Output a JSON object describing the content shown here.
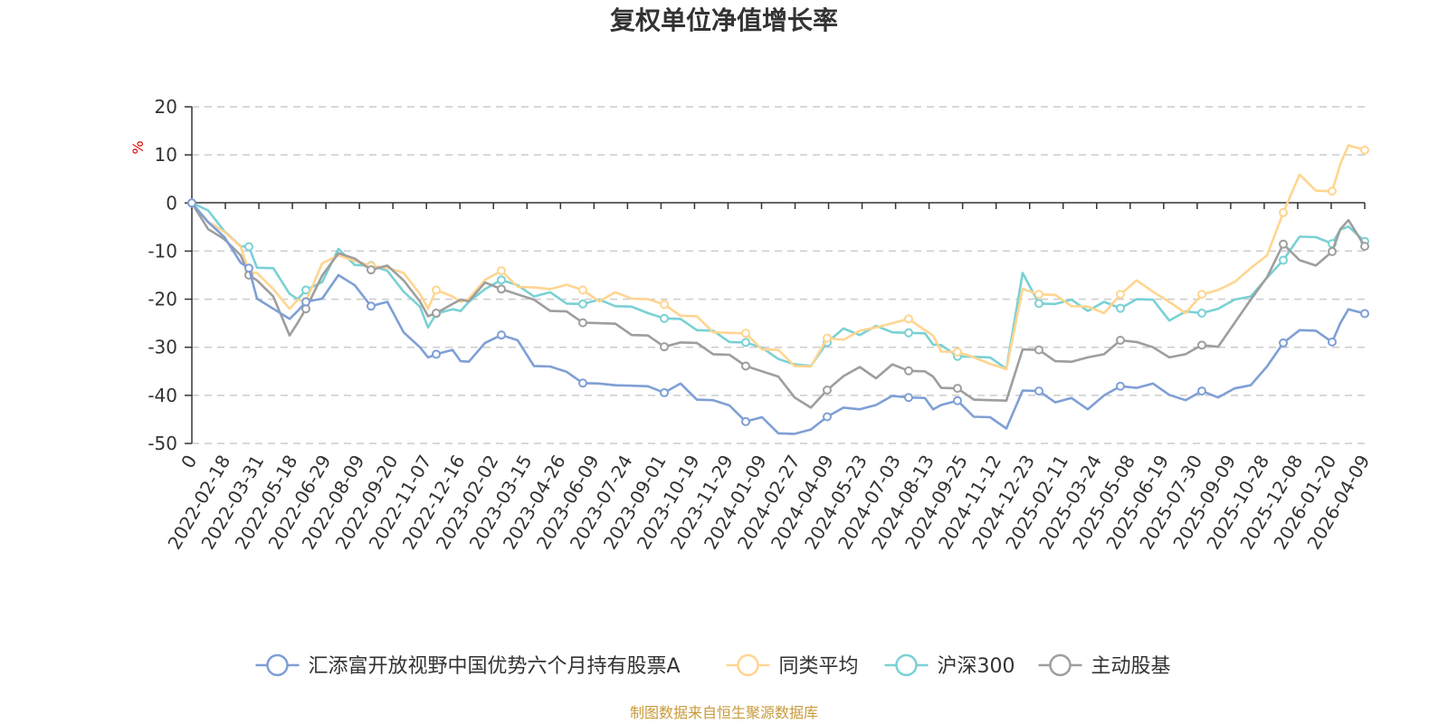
{
  "chart_data": {
    "type": "line",
    "title": "复权单位净值增长率",
    "ylabel": "%",
    "ylim": [
      -50,
      20
    ],
    "yticks": [
      20,
      10,
      0,
      -10,
      -20,
      -30,
      -40,
      -50
    ],
    "x_start_label": "0",
    "x_tick_labels": [
      "2022-02-18",
      "2022-03-31",
      "2022-05-18",
      "2022-06-29",
      "2022-08-09",
      "2022-09-20",
      "2022-11-07",
      "2022-12-16",
      "2023-02-02",
      "2023-03-15",
      "2023-04-26",
      "2023-06-09",
      "2023-07-24",
      "2023-09-01",
      "2023-10-19",
      "2023-11-29",
      "2024-01-09",
      "2024-02-27",
      "2024-04-09",
      "2024-05-23",
      "2024-07-03",
      "2024-08-13",
      "2024-09-25",
      "2024-11-12",
      "2024-12-23",
      "2025-02-11",
      "2025-03-24",
      "2025-05-08",
      "2025-06-19",
      "2025-07-30",
      "2025-09-09",
      "2025-10-28",
      "2025-12-08",
      "2026-01-20",
      "2026-04-09"
    ],
    "x": [
      0,
      2,
      4,
      6,
      7,
      8,
      10,
      12,
      13,
      14,
      16,
      18,
      20,
      22,
      24,
      26,
      28,
      29,
      30,
      32,
      33,
      34,
      36,
      38,
      40,
      42,
      44,
      46,
      48,
      50,
      52,
      54,
      56,
      58,
      60,
      62,
      64,
      66,
      68,
      70,
      72,
      74,
      76,
      78,
      80,
      82,
      84,
      86,
      88,
      90,
      91,
      92,
      94,
      96,
      98,
      100,
      102,
      104,
      106,
      108,
      110,
      112,
      114,
      116,
      118,
      120,
      122,
      124,
      126,
      128,
      130,
      132,
      134,
      136,
      138,
      140,
      141,
      142,
      144
    ],
    "grid": true,
    "legend_position": "bottom",
    "series": [
      {
        "name": "汇添富开放视野中国优势六个月持有股票A",
        "color": "#7f9fd5",
        "values": [
          0,
          -4,
          -8,
          -12,
          -14,
          -19,
          -22,
          -25,
          -22,
          -21,
          -19,
          -15,
          -18,
          -21,
          -21,
          -26,
          -30,
          -33,
          -31,
          -31,
          -32,
          -33,
          -30,
          -27,
          -29,
          -33,
          -34,
          -36,
          -37,
          -38,
          -37,
          -38,
          -39,
          -39,
          -38,
          -40,
          -41,
          -43,
          -45,
          -45,
          -47,
          -48,
          -48,
          -44,
          -43,
          -42,
          -42,
          -41,
          -40,
          -41,
          -42,
          -42,
          -42,
          -44,
          -45,
          -46,
          -39,
          -40,
          -41,
          -41,
          -42,
          -40,
          -39,
          -38,
          -38,
          -39,
          -41,
          -40,
          -40,
          -39,
          -37,
          -34,
          -30,
          -26,
          -27,
          -28,
          -25,
          -23,
          -23
        ]
      },
      {
        "name": "同类平均",
        "color": "#ffd590",
        "values": [
          0,
          -3,
          -6,
          -10,
          -14,
          -15,
          -17,
          -22,
          -21,
          -20,
          -13,
          -10,
          -12,
          -14,
          -13,
          -15,
          -18,
          -22,
          -19,
          -19,
          -21,
          -19,
          -16,
          -15,
          -17,
          -18,
          -17,
          -17,
          -19,
          -20,
          -19,
          -19,
          -20,
          -22,
          -23,
          -24,
          -26,
          -27,
          -28,
          -30,
          -31,
          -33,
          -34,
          -29,
          -28,
          -27,
          -25,
          -25,
          -25,
          -26,
          -28,
          -30,
          -31,
          -33,
          -33,
          -35,
          -17,
          -19,
          -20,
          -21,
          -22,
          -22,
          -19,
          -17,
          -18,
          -21,
          -22,
          -19,
          -19,
          -16,
          -14,
          -10,
          -2,
          5,
          3,
          2,
          9,
          12,
          11
        ]
      },
      {
        "name": "沪深300",
        "color": "#7ad1d4",
        "values": [
          0,
          -2,
          -5,
          -9,
          -10,
          -13,
          -14,
          -18,
          -20,
          -19,
          -16,
          -10,
          -12,
          -13,
          -15,
          -18,
          -22,
          -25,
          -23,
          -23,
          -22,
          -21,
          -17,
          -16,
          -18,
          -19,
          -19,
          -20,
          -21,
          -21,
          -21,
          -22,
          -22,
          -24,
          -25,
          -26,
          -27,
          -28,
          -29,
          -31,
          -32,
          -34,
          -33,
          -29,
          -27,
          -27,
          -26,
          -26,
          -27,
          -28,
          -29,
          -30,
          -31,
          -32,
          -33,
          -34,
          -15,
          -20,
          -21,
          -21,
          -22,
          -21,
          -21,
          -20,
          -21,
          -24,
          -23,
          -22,
          -22,
          -21,
          -19,
          -16,
          -11,
          -7,
          -8,
          -8,
          -6,
          -4,
          -8
        ]
      },
      {
        "name": "主动股基",
        "color": "#9e9e9e",
        "values": [
          0,
          -5,
          -8,
          -10,
          -15,
          -17,
          -19,
          -28,
          -24,
          -22,
          -16,
          -10,
          -12,
          -13,
          -13,
          -17,
          -20,
          -24,
          -22,
          -21,
          -21,
          -20,
          -17,
          -17,
          -19,
          -21,
          -22,
          -23,
          -24,
          -25,
          -26,
          -27,
          -28,
          -29,
          -29,
          -30,
          -31,
          -32,
          -33,
          -35,
          -37,
          -40,
          -43,
          -38,
          -36,
          -35,
          -36,
          -34,
          -34,
          -35,
          -37,
          -38,
          -39,
          -40,
          -41,
          -42,
          -30,
          -31,
          -32,
          -33,
          -33,
          -31,
          -29,
          -28,
          -30,
          -33,
          -31,
          -30,
          -29,
          -25,
          -21,
          -15,
          -9,
          -11,
          -13,
          -11,
          -5,
          -4,
          -9
        ]
      }
    ]
  },
  "footer": {
    "source": "制图数据来自恒生聚源数据库"
  },
  "colors": {
    "unit_label": "#dd0000",
    "source_text": "#c89a3c",
    "grid": "#cccccc",
    "axis": "#333333"
  }
}
